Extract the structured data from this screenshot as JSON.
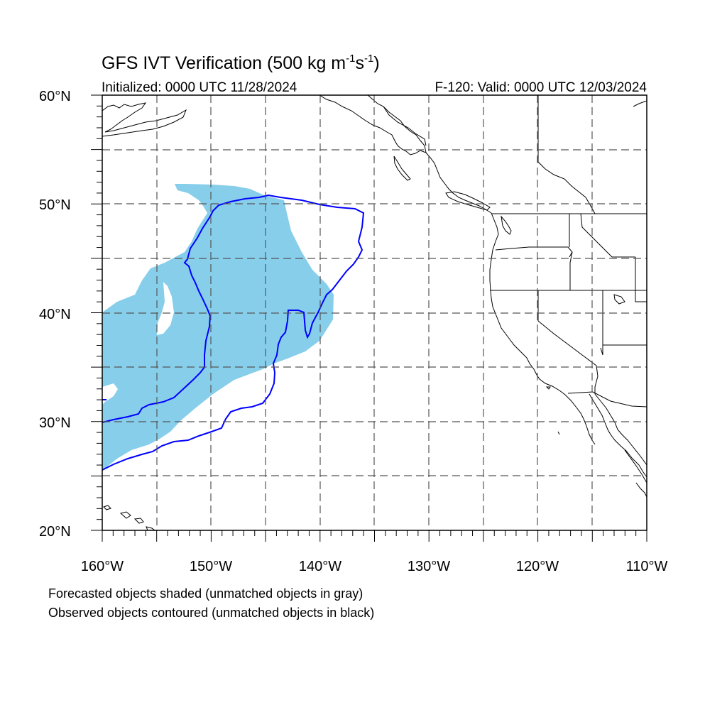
{
  "title": {
    "main": "GFS IVT Verification (500 kg m",
    "sup1": "-1",
    "mid": "s",
    "sup2": "-1",
    "close": ")"
  },
  "subtitle_left": "Initialized: 0000 UTC 11/28/2024",
  "subtitle_right": "F-120: Valid: 0000 UTC 12/03/2024",
  "map": {
    "lon_range": [
      -160,
      -110
    ],
    "lat_range": [
      20,
      60
    ],
    "projection": "cylindrical-equidistant",
    "grid": "dashed every 5 degrees",
    "lat_labels": [
      "60°N",
      "50°N",
      "40°N",
      "30°N",
      "20°N"
    ],
    "lon_labels": [
      "160°W",
      "150°W",
      "140°W",
      "130°W",
      "120°W",
      "110°W"
    ],
    "colors": {
      "forecast_fill": "#87ceeb",
      "observed_contour": "#0000ff",
      "coastline": "#000000",
      "grid": "#555555"
    }
  },
  "legend": {
    "line1": "Forecasted objects shaded (unmatched objects in gray)",
    "line2": "Observed objects contoured (unmatched objects in black)"
  }
}
